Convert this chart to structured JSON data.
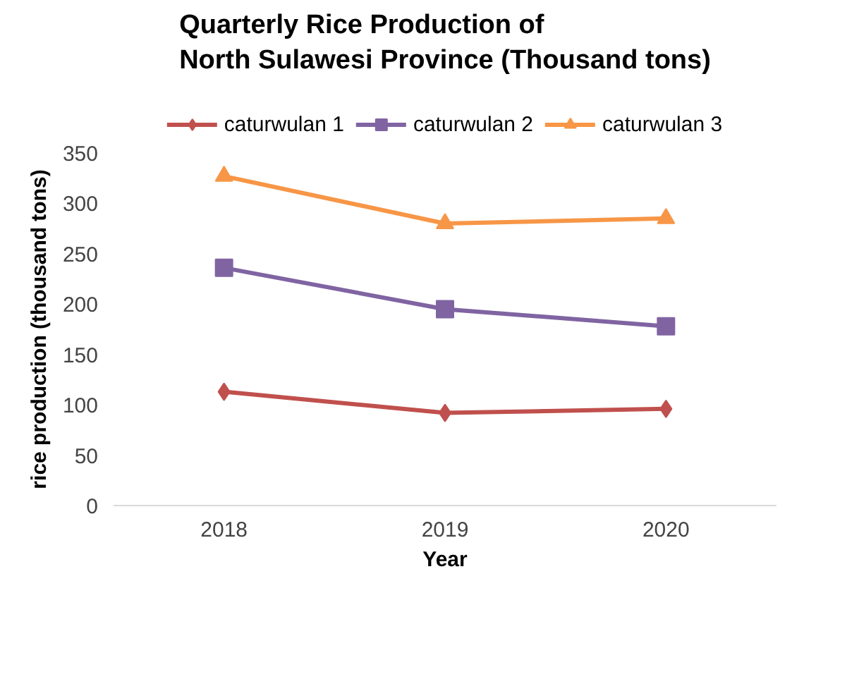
{
  "chart_data": {
    "type": "line",
    "title": "Quarterly Rice Production of North Sulawesi Province (Thousand tons)",
    "xlabel": "Year",
    "ylabel": "rice production (thousand tons)",
    "categories": [
      "2018",
      "2019",
      "2020"
    ],
    "ylim": [
      0,
      350
    ],
    "yticks": [
      0,
      50,
      100,
      150,
      200,
      250,
      300,
      350
    ],
    "legend": "top",
    "grid": false,
    "series": [
      {
        "name": "caturwulan 1",
        "color": "#c0504d",
        "marker": "diamond",
        "values": [
          113,
          92,
          96
        ]
      },
      {
        "name": "caturwulan 2",
        "color": "#8064a2",
        "marker": "square",
        "values": [
          236,
          195,
          178
        ]
      },
      {
        "name": "caturwulan 3",
        "color": "#f79646",
        "marker": "triangle",
        "values": [
          327,
          280,
          285
        ]
      }
    ]
  }
}
